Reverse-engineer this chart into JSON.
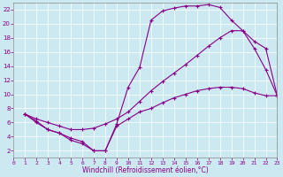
{
  "xlabel": "Windchill (Refroidissement éolien,°C)",
  "bg_color": "#cce8f0",
  "line_color": "#880088",
  "grid_color": "#ffffff",
  "xlim": [
    0,
    23
  ],
  "ylim": [
    1,
    23
  ],
  "xticks": [
    0,
    1,
    2,
    3,
    4,
    5,
    6,
    7,
    8,
    9,
    10,
    11,
    12,
    13,
    14,
    15,
    16,
    17,
    18,
    19,
    20,
    21,
    22,
    23
  ],
  "yticks": [
    2,
    4,
    6,
    8,
    10,
    12,
    14,
    16,
    18,
    20,
    22
  ],
  "curve1_x": [
    1,
    2,
    3,
    4,
    5,
    6,
    7,
    8,
    9,
    10,
    11,
    12,
    13,
    14,
    15,
    16,
    17,
    18,
    19,
    20,
    21,
    22,
    23
  ],
  "curve1_y": [
    7.2,
    6.2,
    5.0,
    4.5,
    3.5,
    3.0,
    2.0,
    2.0,
    5.8,
    11.0,
    13.8,
    20.5,
    21.8,
    22.2,
    22.5,
    22.5,
    22.7,
    22.3,
    20.5,
    19.0,
    16.5,
    13.5,
    9.8
  ],
  "curve2_x": [
    1,
    2,
    3,
    4,
    5,
    6,
    7,
    8,
    9,
    10,
    11,
    12,
    13,
    14,
    15,
    16,
    17,
    18,
    19,
    20,
    21,
    22,
    23
  ],
  "curve2_y": [
    7.2,
    6.5,
    6.0,
    5.5,
    5.0,
    5.0,
    5.2,
    5.8,
    6.5,
    7.5,
    9.0,
    10.5,
    11.8,
    13.0,
    14.2,
    15.5,
    16.8,
    18.0,
    19.0,
    19.0,
    17.5,
    16.5,
    9.8
  ],
  "curve3_x": [
    1,
    2,
    3,
    4,
    5,
    6,
    7,
    8,
    9,
    10,
    11,
    12,
    13,
    14,
    15,
    16,
    17,
    18,
    19,
    20,
    21,
    22,
    23
  ],
  "curve3_y": [
    7.2,
    6.0,
    5.0,
    4.5,
    3.8,
    3.3,
    2.0,
    2.0,
    5.5,
    6.5,
    7.5,
    8.0,
    8.8,
    9.5,
    10.0,
    10.5,
    10.8,
    11.0,
    11.0,
    10.8,
    10.2,
    9.8,
    9.8
  ],
  "xlabel_fontsize": 5.5,
  "tick_fontsize_x": 4.5,
  "tick_fontsize_y": 5.0,
  "linewidth": 0.8,
  "markersize": 3.5
}
